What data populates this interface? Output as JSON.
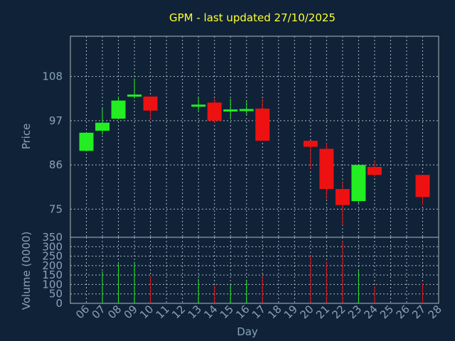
{
  "chart_data": {
    "type": "candlestick",
    "title": "GPM - last updated 27/10/2025",
    "xlabel": "Day",
    "price_ylabel": "Price",
    "volume_ylabel": "Volume (0000)",
    "x_ticks": [
      "06",
      "07",
      "08",
      "09",
      "10",
      "11",
      "12",
      "13",
      "14",
      "15",
      "16",
      "17",
      "18",
      "19",
      "20",
      "21",
      "22",
      "23",
      "24",
      "25",
      "26",
      "27",
      "28"
    ],
    "price_ticks": [
      75,
      86,
      97,
      108
    ],
    "price_ylim": [
      68,
      118
    ],
    "volume_ticks": [
      0,
      50,
      100,
      150,
      200,
      250,
      300,
      350
    ],
    "volume_ylim": [
      0,
      350
    ],
    "colors": {
      "background": "#0f2238",
      "grid": "#b0b8c0",
      "text": "#8aa2ba",
      "title": "#ffff33",
      "up": "#22ee22",
      "down": "#ee1111"
    },
    "candles": [
      {
        "day": "06",
        "open": 89.5,
        "close": 94.0,
        "high": 94.0,
        "low": 89.5,
        "volume": 0
      },
      {
        "day": "07",
        "open": 94.5,
        "close": 96.5,
        "high": 100.0,
        "low": 93.5,
        "volume": 170
      },
      {
        "day": "08",
        "open": 97.5,
        "close": 102.0,
        "high": 103.0,
        "low": 97.5,
        "volume": 210
      },
      {
        "day": "09",
        "open": 103.0,
        "close": 103.5,
        "high": 107.5,
        "low": 102.5,
        "volume": 220
      },
      {
        "day": "10",
        "open": 103.0,
        "close": 99.5,
        "high": 103.0,
        "low": 97.5,
        "volume": 145
      },
      {
        "day": "13",
        "open": 100.5,
        "close": 101.0,
        "high": 103.0,
        "low": 99.5,
        "volume": 130
      },
      {
        "day": "14",
        "open": 101.5,
        "close": 97.0,
        "high": 102.5,
        "low": 96.5,
        "volume": 95
      },
      {
        "day": "15",
        "open": 99.5,
        "close": 99.8,
        "high": 102.5,
        "low": 97.5,
        "volume": 100
      },
      {
        "day": "16",
        "open": 99.5,
        "close": 99.9,
        "high": 102.0,
        "low": 98.5,
        "volume": 125
      },
      {
        "day": "17",
        "open": 100.0,
        "close": 92.0,
        "high": 102.5,
        "low": 92.0,
        "volume": 145
      },
      {
        "day": "20",
        "open": 92.0,
        "close": 90.5,
        "high": 92.0,
        "low": 85.0,
        "volume": 255
      },
      {
        "day": "21",
        "open": 90.0,
        "close": 80.0,
        "high": 91.5,
        "low": 77.5,
        "volume": 220
      },
      {
        "day": "22",
        "open": 80.0,
        "close": 76.0,
        "high": 82.0,
        "low": 71.0,
        "volume": 330
      },
      {
        "day": "23",
        "open": 77.0,
        "close": 86.0,
        "high": 86.0,
        "low": 76.5,
        "volume": 175
      },
      {
        "day": "24",
        "open": 85.5,
        "close": 83.5,
        "high": 87.0,
        "low": 83.0,
        "volume": 90
      },
      {
        "day": "27",
        "open": 83.5,
        "close": 78.0,
        "high": 83.5,
        "low": 76.0,
        "volume": 105
      }
    ]
  }
}
